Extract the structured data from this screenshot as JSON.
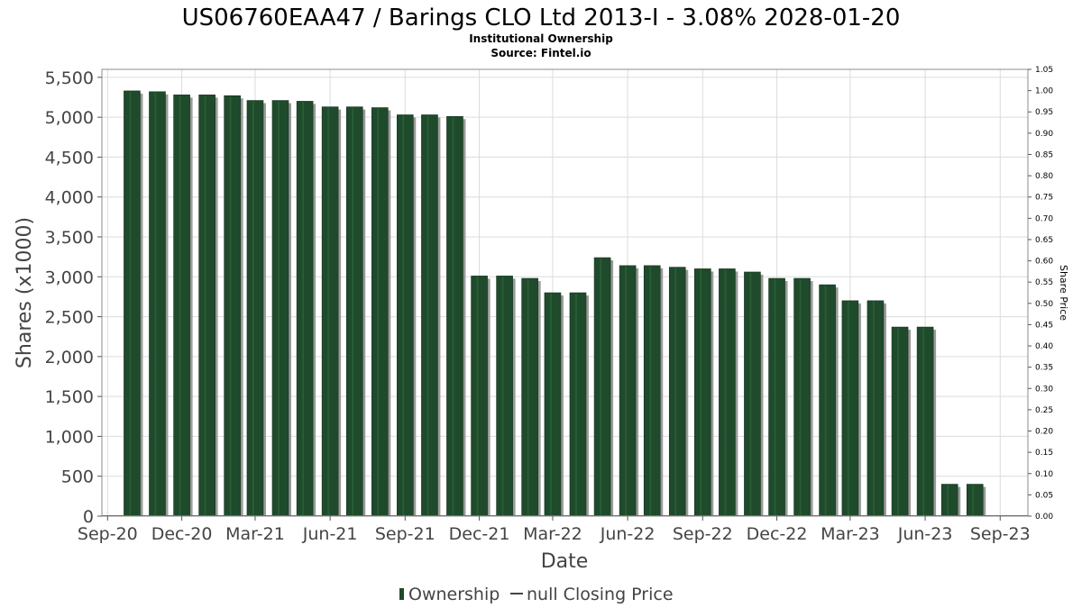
{
  "title": "US06760EAA47 / Barings CLO Ltd 2013-I - 3.08% 2028-01-20",
  "subtitle": "Institutional Ownership",
  "source": "Source: Fintel.io",
  "legend": {
    "ownership_label": "Ownership",
    "price_label": "null Closing Price"
  },
  "colors": {
    "bar": "#1f4a2b",
    "bar_shadow": "#9a9a9a",
    "grid": "#dcdcdc",
    "plot_border": "#8c8c8c"
  },
  "chart_data": {
    "type": "bar",
    "title": "US06760EAA47 / Barings CLO Ltd 2013-I - 3.08% 2028-01-20",
    "subtitle": "Institutional Ownership",
    "xlabel": "Date",
    "ylabel": "Shares (x1000)",
    "y2label": "Share Price",
    "ylim": [
      0,
      5600
    ],
    "y2lim": [
      0,
      1.05
    ],
    "x_range": [
      "2020-08-25",
      "2023-10-05"
    ],
    "y_ticks": [
      0,
      500,
      1000,
      1500,
      2000,
      2500,
      3000,
      3500,
      4000,
      4500,
      5000,
      5500
    ],
    "y_tick_labels": [
      "0",
      "500",
      "1,000",
      "1,500",
      "2,000",
      "2,500",
      "3,000",
      "3,500",
      "4,000",
      "4,500",
      "5,000",
      "5,500"
    ],
    "y2_ticks": [
      0,
      0.05,
      0.1,
      0.15,
      0.2,
      0.25,
      0.3,
      0.35,
      0.4,
      0.45,
      0.5,
      0.55,
      0.6,
      0.65,
      0.7,
      0.75,
      0.8,
      0.85,
      0.9,
      0.95,
      1.0,
      1.05
    ],
    "y2_tick_labels": [
      "0.00",
      "0.05",
      "0.10",
      "0.15",
      "0.20",
      "0.25",
      "0.30",
      "0.35",
      "0.40",
      "0.45",
      "0.50",
      "0.55",
      "0.60",
      "0.65",
      "0.70",
      "0.75",
      "0.80",
      "0.85",
      "0.90",
      "0.95",
      "1.00",
      "1.05"
    ],
    "x_ticks": [
      "2020-09-01",
      "2020-12-01",
      "2021-03-01",
      "2021-06-01",
      "2021-09-01",
      "2021-12-01",
      "2022-03-01",
      "2022-06-01",
      "2022-09-01",
      "2022-12-01",
      "2023-03-01",
      "2023-06-01",
      "2023-09-01"
    ],
    "x_tick_labels": [
      "Sep-20",
      "Dec-20",
      "Mar-21",
      "Jun-21",
      "Sep-21",
      "Dec-21",
      "Mar-22",
      "Jun-22",
      "Sep-22",
      "Dec-22",
      "Mar-23",
      "Jun-23",
      "Sep-23"
    ],
    "grid": true,
    "legend_position": "bottom",
    "series": [
      {
        "name": "Ownership",
        "x": [
          "2020-10-01",
          "2020-11-01",
          "2020-12-01",
          "2021-01-01",
          "2021-02-01",
          "2021-03-01",
          "2021-04-01",
          "2021-05-01",
          "2021-06-01",
          "2021-07-01",
          "2021-08-01",
          "2021-09-01",
          "2021-10-01",
          "2021-11-01",
          "2021-12-01",
          "2022-01-01",
          "2022-02-01",
          "2022-03-01",
          "2022-04-01",
          "2022-05-01",
          "2022-06-01",
          "2022-07-01",
          "2022-08-01",
          "2022-09-01",
          "2022-10-01",
          "2022-11-01",
          "2022-12-01",
          "2023-01-01",
          "2023-02-01",
          "2023-03-01",
          "2023-04-01",
          "2023-05-01",
          "2023-06-01",
          "2023-07-01",
          "2023-08-01"
        ],
        "values": [
          5330,
          5320,
          5280,
          5280,
          5270,
          5210,
          5210,
          5200,
          5130,
          5130,
          5120,
          5030,
          5030,
          5010,
          3010,
          3010,
          2980,
          2800,
          2800,
          3240,
          3140,
          3140,
          3120,
          3100,
          3100,
          3060,
          2980,
          2980,
          2900,
          2700,
          2700,
          2370,
          2370,
          400,
          400
        ]
      }
    ]
  }
}
